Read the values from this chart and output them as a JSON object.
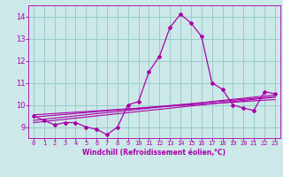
{
  "x_values": [
    0,
    1,
    2,
    3,
    4,
    5,
    6,
    7,
    8,
    9,
    10,
    11,
    12,
    13,
    14,
    15,
    16,
    17,
    18,
    19,
    20,
    21,
    22,
    23
  ],
  "main_line": [
    9.5,
    9.3,
    9.1,
    9.2,
    9.2,
    9.0,
    8.9,
    8.65,
    9.0,
    10.0,
    10.15,
    11.5,
    12.2,
    13.5,
    14.1,
    13.7,
    13.1,
    11.0,
    10.7,
    10.0,
    9.85,
    9.75,
    10.6,
    10.5
  ],
  "trend_lines": [
    [
      9.2,
      9.25,
      9.3,
      9.35,
      9.4,
      9.45,
      9.5,
      9.55,
      9.6,
      9.65,
      9.7,
      9.75,
      9.8,
      9.85,
      9.9,
      9.95,
      10.0,
      10.05,
      10.1,
      10.15,
      10.2,
      10.25,
      10.3,
      10.35
    ],
    [
      9.3,
      9.35,
      9.4,
      9.45,
      9.5,
      9.55,
      9.6,
      9.65,
      9.7,
      9.75,
      9.8,
      9.85,
      9.9,
      9.95,
      10.0,
      10.05,
      10.1,
      10.15,
      10.2,
      10.25,
      10.3,
      10.35,
      10.4,
      10.45
    ],
    [
      9.45,
      9.49,
      9.53,
      9.57,
      9.61,
      9.65,
      9.69,
      9.73,
      9.77,
      9.81,
      9.85,
      9.89,
      9.93,
      9.97,
      10.01,
      10.05,
      10.09,
      10.13,
      10.17,
      10.21,
      10.25,
      10.29,
      10.33,
      10.37
    ],
    [
      9.55,
      9.58,
      9.61,
      9.64,
      9.67,
      9.7,
      9.73,
      9.76,
      9.79,
      9.82,
      9.85,
      9.88,
      9.91,
      9.94,
      9.97,
      10.0,
      10.03,
      10.06,
      10.09,
      10.12,
      10.15,
      10.18,
      10.21,
      10.24
    ]
  ],
  "line_color": "#aa00aa",
  "bg_color": "#cce8e8",
  "grid_color": "#99cccc",
  "xlabel": "Windchill (Refroidissement éolien,°C)",
  "xlim": [
    -0.5,
    23.5
  ],
  "ylim": [
    8.5,
    14.5
  ],
  "yticks": [
    9,
    10,
    11,
    12,
    13,
    14
  ],
  "xticks": [
    0,
    1,
    2,
    3,
    4,
    5,
    6,
    7,
    8,
    9,
    10,
    11,
    12,
    13,
    14,
    15,
    16,
    17,
    18,
    19,
    20,
    21,
    22,
    23
  ]
}
